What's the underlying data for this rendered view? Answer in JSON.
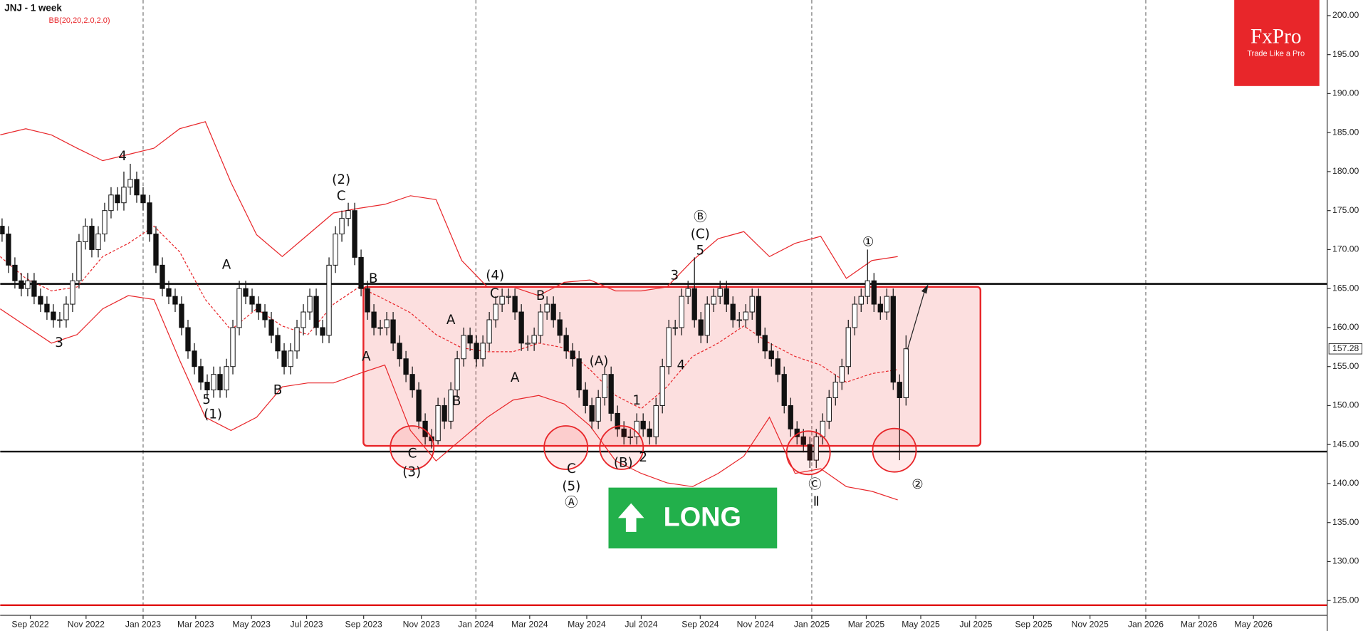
{
  "chart_data": {
    "type": "candlestick",
    "title": "JNJ - 1 week",
    "subtitle": "BB(20,20,2.0,2.0)",
    "brand": "FxPro",
    "tagline": "Trade Like a Pro",
    "badge": "LONG",
    "xlim": [
      0,
      207
    ],
    "ylim": [
      123.1,
      202
    ],
    "yticks": [
      {
        "value": 125,
        "label": "125.00"
      },
      {
        "value": 130,
        "label": "130.00"
      },
      {
        "value": 135,
        "label": "135.00"
      },
      {
        "value": 140,
        "label": "140.00"
      },
      {
        "value": 145,
        "label": "145.00"
      },
      {
        "value": 150,
        "label": "150.00"
      },
      {
        "value": 155,
        "label": "155.00"
      },
      {
        "value": 160,
        "label": "160.00"
      },
      {
        "value": 165,
        "label": "165.00"
      },
      {
        "value": 170,
        "label": "170.00"
      },
      {
        "value": 175,
        "label": "175.00"
      },
      {
        "value": 180,
        "label": "180.00"
      },
      {
        "value": 185,
        "label": "185.00"
      },
      {
        "value": 190,
        "label": "190.00"
      },
      {
        "value": 195,
        "label": "195.00"
      },
      {
        "value": 200,
        "label": "200.00"
      }
    ],
    "xticks": [
      {
        "value": 4.7,
        "label": "Sep 2022"
      },
      {
        "value": 13.4,
        "label": "Nov 2022"
      },
      {
        "value": 22.3,
        "label": "Jan 2023"
      },
      {
        "value": 30.5,
        "label": "Mar 2023"
      },
      {
        "value": 39.2,
        "label": "May 2023"
      },
      {
        "value": 47.8,
        "label": "Jul 2023"
      },
      {
        "value": 56.7,
        "label": "Sep 2023"
      },
      {
        "value": 65.7,
        "label": "Nov 2023"
      },
      {
        "value": 74.2,
        "label": "Jan 2024"
      },
      {
        "value": 82.6,
        "label": "Mar 2024"
      },
      {
        "value": 91.5,
        "label": "May 2024"
      },
      {
        "value": 100,
        "label": "Jul 2024"
      },
      {
        "value": 109.2,
        "label": "Sep 2024"
      },
      {
        "value": 117.8,
        "label": "Nov 2024"
      },
      {
        "value": 126.6,
        "label": "Jan 2025"
      },
      {
        "value": 135.1,
        "label": "Mar 2025"
      },
      {
        "value": 143.6,
        "label": "May 2025"
      },
      {
        "value": 152.2,
        "label": "Jul 2025"
      },
      {
        "value": 161.2,
        "label": "Sep 2025"
      },
      {
        "value": 170,
        "label": "Nov 2025"
      },
      {
        "value": 178.7,
        "label": "Jan 2026"
      },
      {
        "value": 187,
        "label": "Mar 2026"
      },
      {
        "value": 195.5,
        "label": "May 2026"
      }
    ],
    "candles": [
      [
        173,
        174,
        171,
        172
      ],
      [
        172,
        173,
        167,
        168
      ],
      [
        168,
        169,
        165,
        166
      ],
      [
        166,
        167,
        164,
        165
      ],
      [
        165,
        167,
        164,
        166
      ],
      [
        166,
        167,
        163,
        164
      ],
      [
        164,
        165,
        162,
        163
      ],
      [
        163,
        164,
        161,
        162
      ],
      [
        162,
        163,
        160,
        161
      ],
      [
        161,
        162,
        160,
        161
      ],
      [
        161,
        164,
        160,
        163
      ],
      [
        163,
        167,
        162,
        166
      ],
      [
        166,
        172,
        165,
        171
      ],
      [
        171,
        174,
        170,
        173
      ],
      [
        173,
        174,
        169,
        170
      ],
      [
        170,
        173,
        169,
        172
      ],
      [
        172,
        176,
        171,
        175
      ],
      [
        175,
        178,
        174,
        177
      ],
      [
        177,
        178,
        175,
        176
      ],
      [
        176,
        180,
        175,
        178
      ],
      [
        178,
        181,
        177,
        179
      ],
      [
        179,
        180,
        176,
        177
      ],
      [
        177,
        178,
        175,
        176
      ],
      [
        176,
        177,
        171,
        172
      ],
      [
        172,
        173,
        167,
        168
      ],
      [
        168,
        169,
        164,
        165
      ],
      [
        165,
        166,
        163,
        164
      ],
      [
        164,
        165,
        162,
        163
      ],
      [
        163,
        164,
        159,
        160
      ],
      [
        160,
        161,
        156,
        157
      ],
      [
        157,
        158,
        154,
        155
      ],
      [
        155,
        156,
        152,
        153
      ],
      [
        153,
        154,
        151,
        152
      ],
      [
        152,
        155,
        151,
        154
      ],
      [
        154,
        155,
        151,
        152
      ],
      [
        152,
        156,
        151,
        155
      ],
      [
        155,
        161,
        154,
        160
      ],
      [
        160,
        166,
        159,
        165
      ],
      [
        165,
        166,
        163,
        164
      ],
      [
        164,
        165,
        162,
        163
      ],
      [
        163,
        164,
        161,
        162
      ],
      [
        162,
        163,
        160,
        161
      ],
      [
        161,
        162,
        158,
        159
      ],
      [
        159,
        160,
        156,
        157
      ],
      [
        157,
        158,
        154,
        155
      ],
      [
        155,
        158,
        154,
        157
      ],
      [
        157,
        161,
        156,
        160
      ],
      [
        160,
        163,
        159,
        162
      ],
      [
        162,
        165,
        161,
        164
      ],
      [
        164,
        165,
        159,
        160
      ],
      [
        160,
        161,
        158,
        159
      ],
      [
        159,
        169,
        158,
        168
      ],
      [
        168,
        173,
        167,
        172
      ],
      [
        172,
        175,
        171,
        174
      ],
      [
        174,
        176,
        173,
        175
      ],
      [
        175,
        176,
        168,
        169
      ],
      [
        169,
        170,
        164,
        165
      ],
      [
        165,
        166,
        161,
        162
      ],
      [
        162,
        163,
        159,
        160
      ],
      [
        160,
        161,
        159,
        160
      ],
      [
        160,
        162,
        159,
        161
      ],
      [
        161,
        162,
        157,
        158
      ],
      [
        158,
        159,
        155,
        156
      ],
      [
        156,
        157,
        153,
        154
      ],
      [
        154,
        155,
        151,
        152
      ],
      [
        152,
        153,
        147,
        148
      ],
      [
        148,
        149,
        145,
        146
      ],
      [
        146,
        147,
        144.5,
        145.5
      ],
      [
        145.5,
        151,
        145,
        150
      ],
      [
        150,
        151,
        147,
        148
      ],
      [
        148,
        153,
        147,
        152
      ],
      [
        152,
        157,
        151,
        156
      ],
      [
        156,
        160,
        155,
        159
      ],
      [
        159,
        160,
        157,
        158
      ],
      [
        158,
        159,
        155,
        156
      ],
      [
        156,
        159,
        155,
        158
      ],
      [
        158,
        162,
        157,
        161
      ],
      [
        161,
        164,
        160,
        163
      ],
      [
        163,
        165,
        162,
        164
      ],
      [
        164,
        165,
        163,
        164
      ],
      [
        164,
        165,
        161,
        162
      ],
      [
        162,
        163,
        157,
        158
      ],
      [
        158,
        159,
        157,
        158
      ],
      [
        158,
        160,
        157,
        159
      ],
      [
        159,
        163,
        158,
        162
      ],
      [
        162,
        164,
        161,
        163
      ],
      [
        163,
        164,
        160,
        161
      ],
      [
        161,
        162,
        158,
        159
      ],
      [
        159,
        160,
        156,
        157
      ],
      [
        157,
        158,
        155,
        156
      ],
      [
        156,
        157,
        151,
        152
      ],
      [
        152,
        153,
        149,
        150
      ],
      [
        150,
        151,
        147,
        148
      ],
      [
        148,
        152,
        147,
        151
      ],
      [
        151,
        155,
        150,
        154
      ],
      [
        154,
        155,
        148,
        149
      ],
      [
        149,
        150,
        146,
        147
      ],
      [
        147,
        148,
        145,
        146
      ],
      [
        146,
        147,
        145,
        146
      ],
      [
        146,
        149,
        145,
        148
      ],
      [
        148,
        149,
        146,
        147
      ],
      [
        147,
        148,
        145,
        146
      ],
      [
        146,
        151,
        145,
        150
      ],
      [
        150,
        156,
        149,
        155
      ],
      [
        155,
        161,
        154,
        160
      ],
      [
        160,
        161,
        159,
        160
      ],
      [
        160,
        165,
        159,
        164
      ],
      [
        164,
        166,
        163,
        165
      ],
      [
        165,
        169,
        160,
        161
      ],
      [
        161,
        162,
        158,
        159
      ],
      [
        159,
        164,
        158,
        163
      ],
      [
        163,
        165,
        162,
        164
      ],
      [
        164,
        166,
        163,
        165
      ],
      [
        165,
        166,
        162,
        163
      ],
      [
        163,
        164,
        160,
        161
      ],
      [
        161,
        162,
        160,
        161
      ],
      [
        161,
        163,
        160,
        162
      ],
      [
        162,
        165,
        161,
        164
      ],
      [
        164,
        165,
        158,
        159
      ],
      [
        159,
        160,
        156,
        157
      ],
      [
        157,
        158,
        155,
        156
      ],
      [
        156,
        157,
        153,
        154
      ],
      [
        154,
        155,
        149,
        150
      ],
      [
        150,
        151,
        146,
        147
      ],
      [
        147,
        148,
        145,
        146
      ],
      [
        146,
        147,
        144,
        145
      ],
      [
        145,
        146,
        142,
        143
      ],
      [
        143,
        147,
        142,
        146
      ],
      [
        146,
        149,
        145,
        148
      ],
      [
        148,
        152,
        147,
        151
      ],
      [
        151,
        154,
        150,
        153
      ],
      [
        153,
        156,
        152,
        155
      ],
      [
        155,
        161,
        154,
        160
      ],
      [
        160,
        164,
        159,
        163
      ],
      [
        163,
        165,
        162,
        164
      ],
      [
        164,
        170,
        163,
        166
      ],
      [
        166,
        167,
        162,
        163
      ],
      [
        163,
        164,
        161,
        162
      ],
      [
        162,
        165,
        161,
        164
      ],
      [
        164,
        165,
        152,
        153
      ],
      [
        153,
        154,
        143,
        151
      ],
      [
        151,
        159,
        150,
        157.28
      ]
    ],
    "bands_x": [
      0,
      4,
      8,
      12,
      16,
      20,
      24,
      28,
      32,
      36,
      40,
      44,
      48,
      52,
      56,
      60,
      64,
      68,
      72,
      76,
      80,
      84,
      88,
      92,
      96,
      100,
      104,
      108,
      112,
      116,
      120,
      124,
      128,
      132,
      136,
      140
    ],
    "band_color": "#e8262a",
    "bands": [
      {
        "dashed": false,
        "values": [
          184.7,
          185.5,
          184.7,
          183,
          181.4,
          182.2,
          183,
          185.5,
          186.4,
          178.6,
          171.9,
          169.1,
          171.9,
          174.7,
          175.3,
          175.8,
          176.9,
          176.4,
          168.6,
          165.2,
          165.2,
          164.1,
          165.8,
          166.1,
          164.7,
          164.7,
          165.2,
          168.6,
          171.4,
          172.3,
          169.1,
          170.8,
          171.7,
          166.3,
          168.6,
          169.1
        ]
      },
      {
        "dashed": true,
        "values": [
          169.1,
          166.3,
          164.7,
          165.2,
          169.1,
          170.8,
          173,
          169.7,
          163.6,
          159.7,
          162.4,
          160.2,
          159.1,
          163,
          165.2,
          163.6,
          161.9,
          159.1,
          157.4,
          156.9,
          156.9,
          158,
          157.4,
          154.6,
          151.3,
          149.6,
          152.4,
          156.3,
          158,
          160.2,
          158,
          156.3,
          155.2,
          153,
          154.1,
          154.6
        ]
      },
      {
        "dashed": false,
        "values": [
          162.4,
          160.2,
          158,
          159.1,
          162.4,
          164.1,
          163.6,
          155.8,
          148.5,
          146.8,
          148.5,
          152.4,
          152.9,
          152.9,
          154.1,
          155.2,
          146.8,
          142.9,
          145.7,
          148.5,
          150.7,
          151.3,
          150.2,
          147.4,
          142.9,
          141.3,
          140.1,
          139.6,
          141.3,
          143.5,
          148.5,
          141.3,
          141.9,
          139.6,
          139,
          137.9
        ]
      }
    ],
    "levels": [
      {
        "value": 165.6,
        "color": "#000000"
      },
      {
        "value": 144.1,
        "color": "#000000"
      },
      {
        "value": 124.4,
        "color": "#e00000"
      }
    ],
    "annotations": [
      {
        "text": "4",
        "x": 19.1,
        "y": 181.9
      },
      {
        "text": "3",
        "x": 9.2,
        "y": 158
      },
      {
        "text": "A",
        "x": 35.3,
        "y": 168
      },
      {
        "text": "5",
        "x": 32.2,
        "y": 150.7
      },
      {
        "text": "(1)",
        "x": 33.2,
        "y": 148.8
      },
      {
        "text": "B",
        "x": 43.3,
        "y": 151.9
      },
      {
        "text": "(2)",
        "x": 53.2,
        "y": 178.9
      },
      {
        "text": "C",
        "x": 53.2,
        "y": 176.8
      },
      {
        "text": "B",
        "x": 58.2,
        "y": 166.2
      },
      {
        "text": "A",
        "x": 57.1,
        "y": 156.2
      },
      {
        "text": "C",
        "x": 64.3,
        "y": 143.8
      },
      {
        "text": "(3)",
        "x": 64.2,
        "y": 141.4
      },
      {
        "text": "A",
        "x": 70.3,
        "y": 160.9
      },
      {
        "text": "B",
        "x": 71.2,
        "y": 150.5
      },
      {
        "text": "(4)",
        "x": 77.2,
        "y": 166.6
      },
      {
        "text": "C",
        "x": 77.1,
        "y": 164.3
      },
      {
        "text": "B",
        "x": 84.3,
        "y": 164
      },
      {
        "text": "A",
        "x": 80.3,
        "y": 153.5
      },
      {
        "text": "(A)",
        "x": 93.4,
        "y": 155.6
      },
      {
        "text": "C",
        "x": 89.1,
        "y": 141.8
      },
      {
        "text": "(5)",
        "x": 89.1,
        "y": 139.6
      },
      {
        "text": "Ⓐ",
        "x": 89.1,
        "y": 137.5
      },
      {
        "text": "1",
        "x": 99.3,
        "y": 150.6
      },
      {
        "text": "(B)",
        "x": 97.2,
        "y": 142.6
      },
      {
        "text": "2",
        "x": 100.3,
        "y": 143.3
      },
      {
        "text": "3",
        "x": 105.2,
        "y": 166.6
      },
      {
        "text": "4",
        "x": 106.2,
        "y": 155.1
      },
      {
        "text": "Ⓑ",
        "x": 109.2,
        "y": 174.1
      },
      {
        "text": "(C)",
        "x": 109.2,
        "y": 171.9
      },
      {
        "text": "5",
        "x": 109.2,
        "y": 169.8
      },
      {
        "text": "Ⓒ",
        "x": 127.1,
        "y": 139.8
      },
      {
        "text": "Ⅱ",
        "x": 127.3,
        "y": 137.6
      },
      {
        "text": "①",
        "x": 135.4,
        "y": 170.9
      },
      {
        "text": "②",
        "x": 143.1,
        "y": 139.8
      }
    ]
  }
}
